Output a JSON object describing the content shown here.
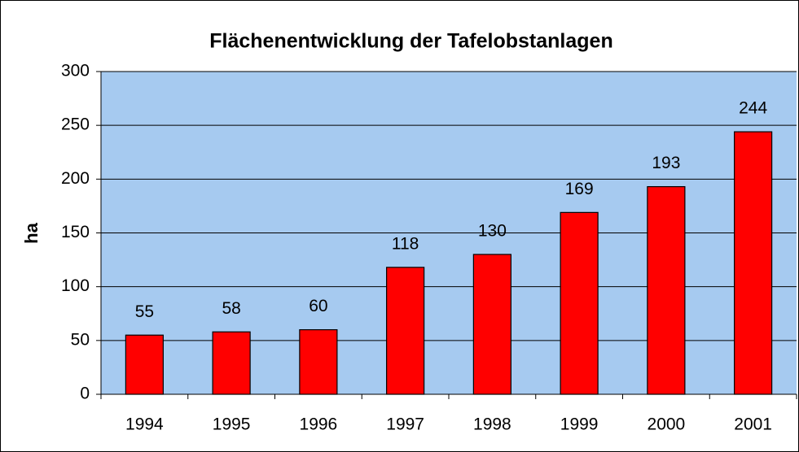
{
  "chart_data": {
    "type": "bar",
    "title": "Flächenentwicklung der Tafelobstanlagen",
    "y_label": "ha",
    "categories": [
      "1994",
      "1995",
      "1996",
      "1997",
      "1998",
      "1999",
      "2000",
      "2001"
    ],
    "values": [
      55,
      58,
      60,
      118,
      130,
      169,
      193,
      244
    ],
    "color": "#ff0000",
    "ylim": [
      0,
      300
    ],
    "yticks": [
      0,
      50,
      100,
      150,
      200,
      250,
      300
    ],
    "grid": true,
    "plot_background": "#a6caf0"
  }
}
